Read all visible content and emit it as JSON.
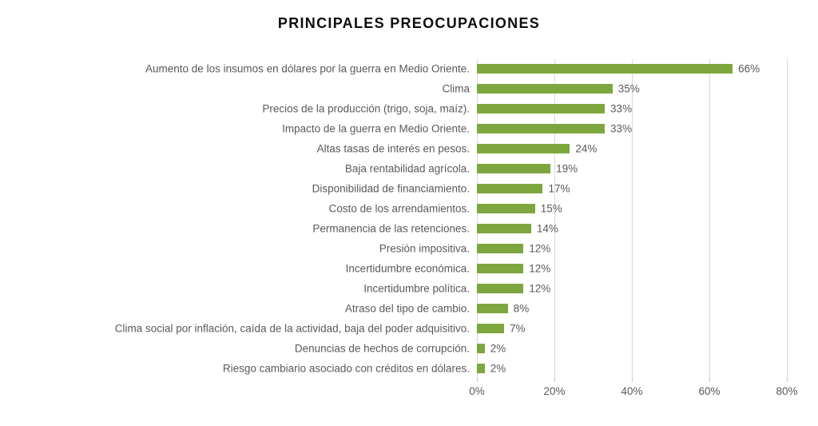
{
  "chart_data": {
    "type": "bar",
    "orientation": "horizontal",
    "title": "PRINCIPALES PREOCUPACIONES",
    "categories": [
      "Aumento de los insumos en dólares por la guerra en Medio Oriente.",
      "Clima",
      "Precios de la producción (trigo, soja, maíz).",
      "Impacto de la guerra en Medio Oriente.",
      "Altas tasas de interés en pesos.",
      "Baja rentabilidad agrícola.",
      "Disponibilidad de financiamiento.",
      "Costo de los arrendamientos.",
      "Permanencia de las retenciones.",
      "Presión impositiva.",
      "Incertidumbre económica.",
      "Incertidumbre política.",
      "Atraso del tipo de cambio.",
      "Clima social por inflación, caída de la actividad, baja del poder adquisitivo.",
      "Denuncias de hechos de corrupción.",
      "Riesgo cambiario asociado con créditos en dólares."
    ],
    "values": [
      66,
      35,
      33,
      33,
      24,
      19,
      17,
      15,
      14,
      12,
      12,
      12,
      8,
      7,
      2,
      2
    ],
    "data_labels": [
      "66%",
      "35%",
      "33%",
      "33%",
      "24%",
      "19%",
      "17%",
      "15%",
      "14%",
      "12%",
      "12%",
      "12%",
      "8%",
      "7%",
      "2%",
      "2%"
    ],
    "x_ticks": [
      "0%",
      "20%",
      "40%",
      "60%",
      "80%"
    ],
    "xlim": [
      0,
      80
    ],
    "xlabel": "",
    "ylabel": "",
    "grid": true,
    "legend": false,
    "colors": {
      "bar": "#7da73e",
      "labels": "#595959",
      "gridline": "#d9d9d9",
      "title": "#0d0d0d",
      "background": "#ffffff"
    }
  }
}
